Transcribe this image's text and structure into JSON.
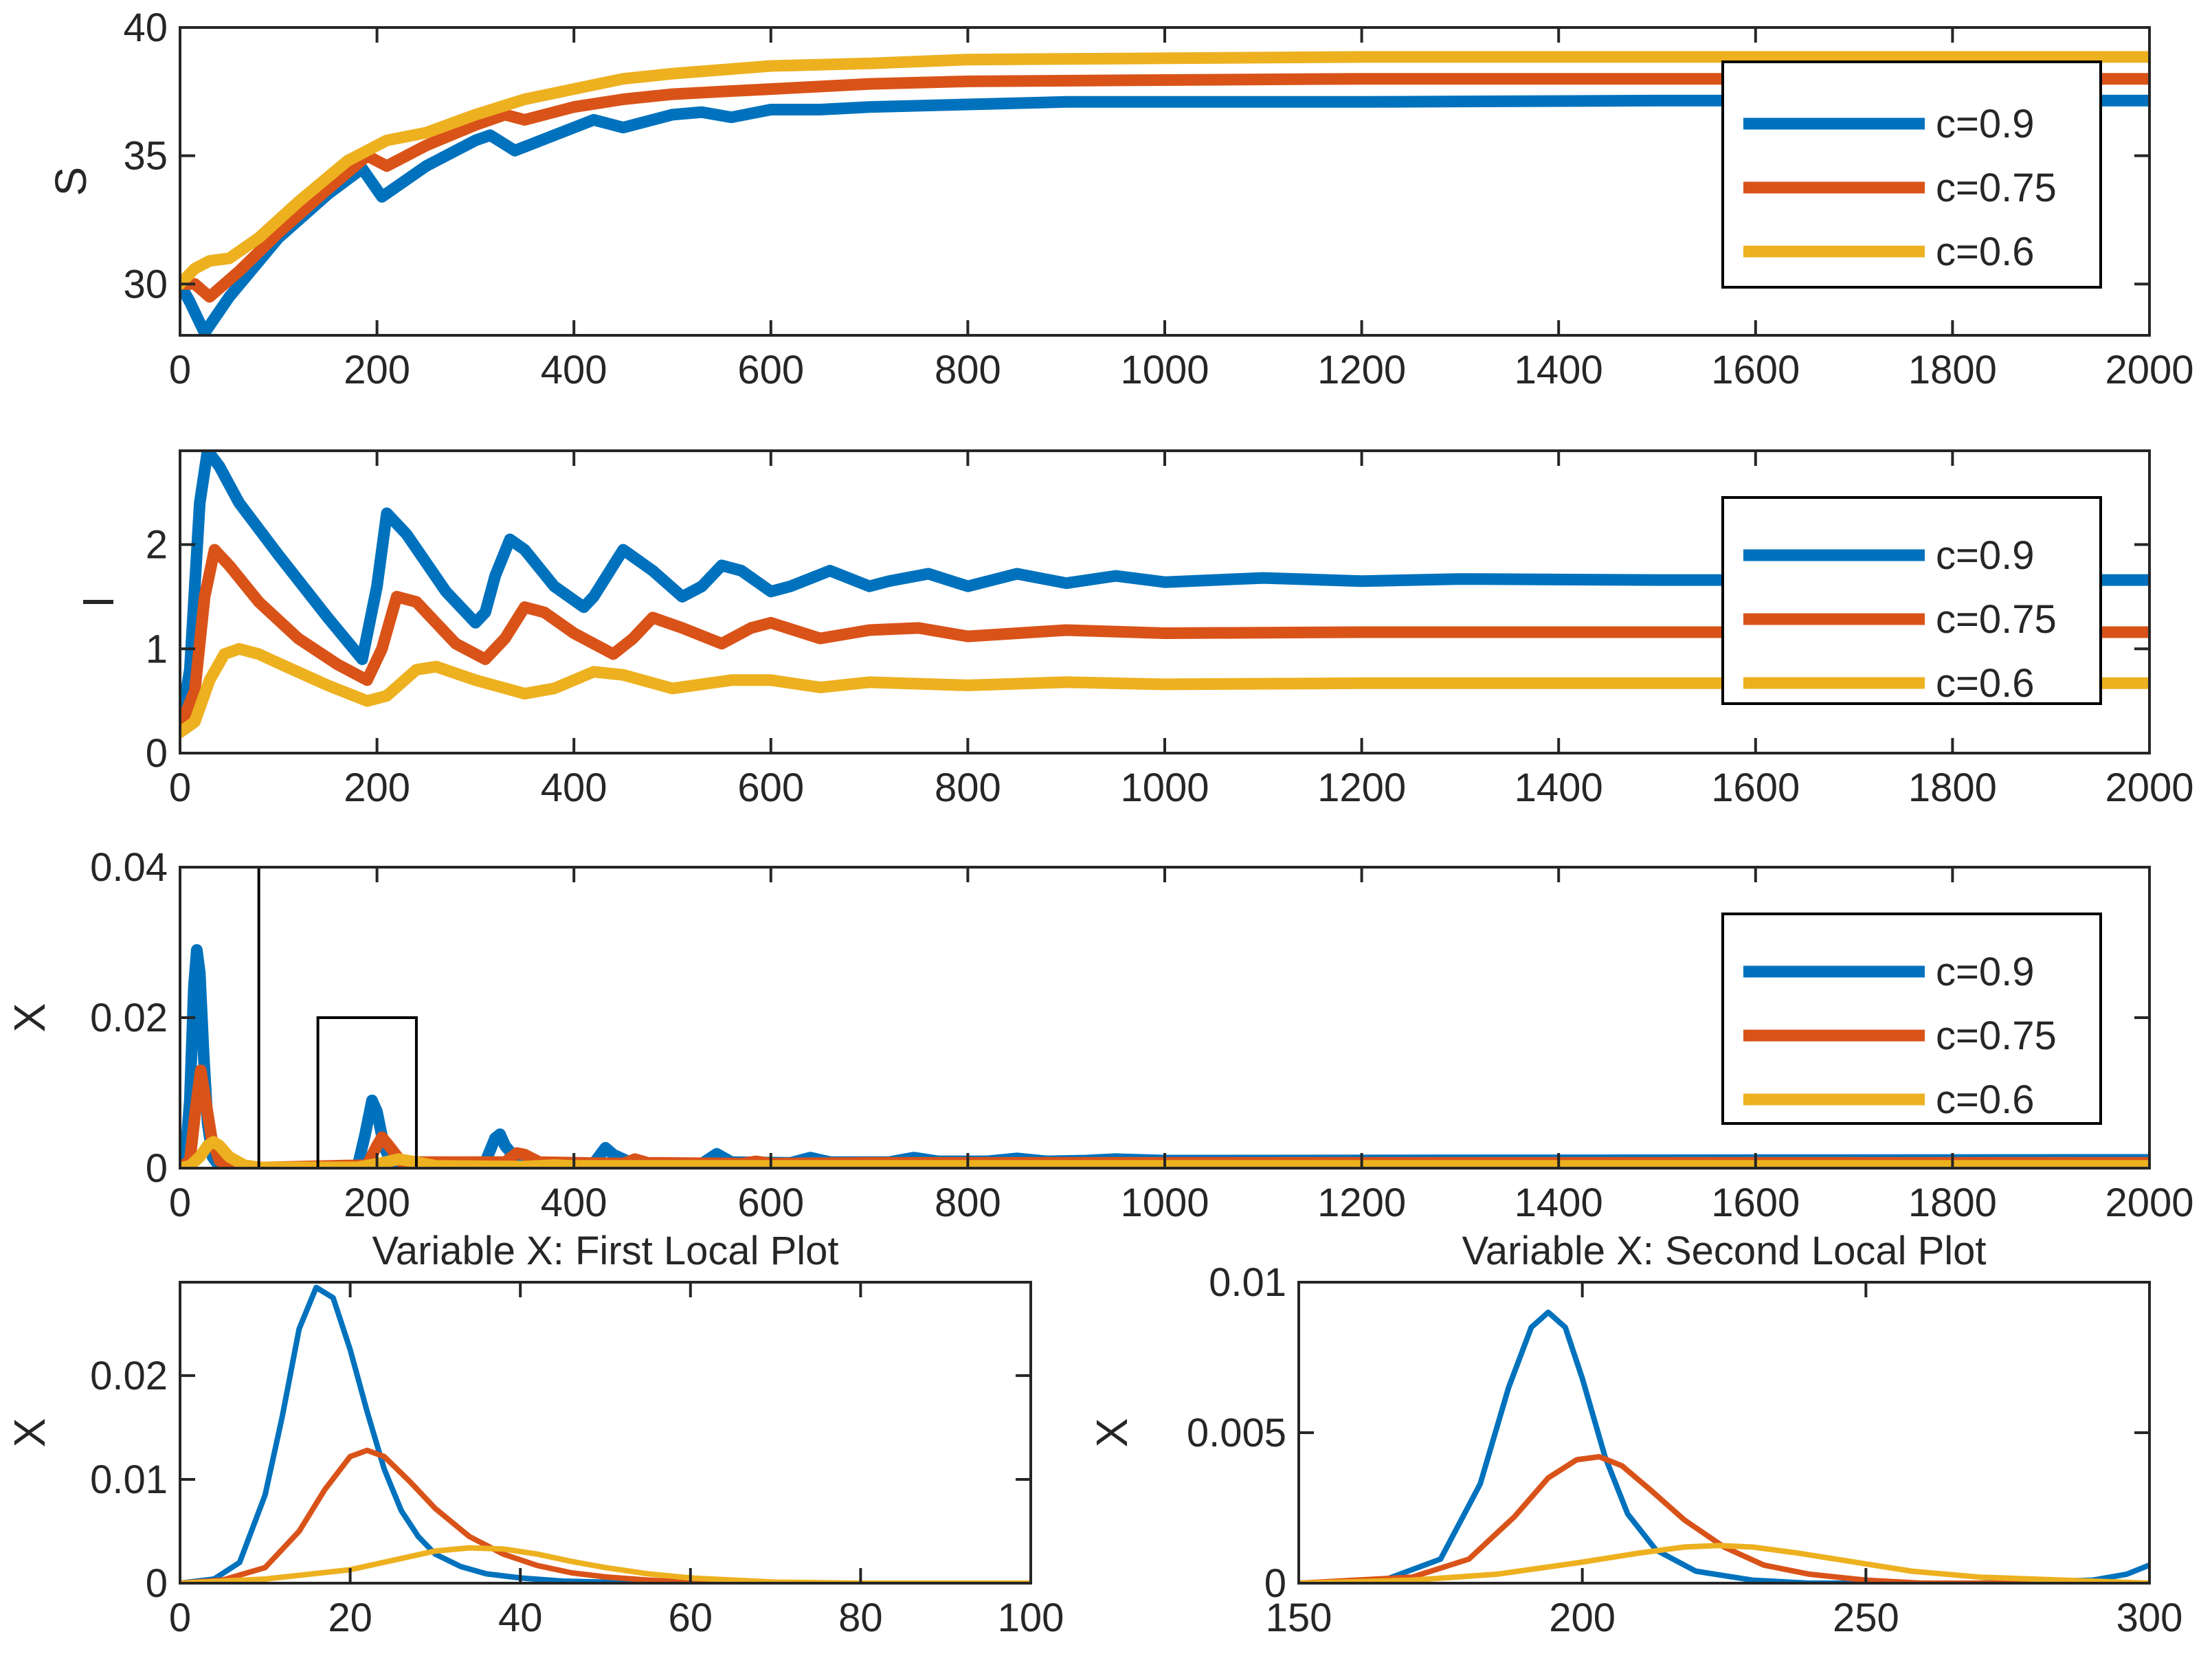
{
  "colors": {
    "c09": "#0072BD",
    "c075": "#D95319",
    "c06": "#EDB120",
    "axis": "#262626"
  },
  "legend": [
    "c=0.9",
    "c=0.75",
    "c=0.6"
  ],
  "chart_data": [
    {
      "id": "S",
      "type": "line",
      "title": "",
      "xlabel": "",
      "ylabel": "S",
      "xlim": [
        0,
        2000
      ],
      "ylim": [
        28,
        40
      ],
      "xticks": [
        0,
        200,
        400,
        600,
        800,
        1000,
        1200,
        1400,
        1600,
        1800,
        2000
      ],
      "yticks": [
        30,
        35,
        40
      ],
      "xtick_labels": [
        "0",
        "200",
        "400",
        "600",
        "800",
        "1000",
        "1200",
        "1400",
        "1600",
        "1800",
        "2000"
      ],
      "ytick_labels": [
        "30",
        "35",
        "40"
      ],
      "legend_placement": "top-right",
      "series": [
        {
          "name": "c=0.9",
          "x": [
            0,
            10,
            25,
            50,
            100,
            150,
            185,
            205,
            250,
            300,
            315,
            340,
            380,
            420,
            450,
            500,
            530,
            560,
            600,
            650,
            700,
            800,
            900,
            1000,
            1200,
            1500,
            2000
          ],
          "values": [
            30,
            29.3,
            28.1,
            29.5,
            31.8,
            33.5,
            34.5,
            33.4,
            34.6,
            35.6,
            35.8,
            35.2,
            35.8,
            36.4,
            36.1,
            36.6,
            36.7,
            36.5,
            36.8,
            36.8,
            36.9,
            37.0,
            37.1,
            37.1,
            37.1,
            37.15,
            37.15
          ]
        },
        {
          "name": "c=0.75",
          "x": [
            0,
            15,
            30,
            60,
            100,
            150,
            190,
            210,
            250,
            300,
            330,
            350,
            400,
            450,
            500,
            550,
            600,
            650,
            700,
            800,
            1000,
            1200,
            1500,
            2000
          ],
          "values": [
            30,
            30.0,
            29.5,
            30.5,
            32.0,
            33.7,
            35.0,
            34.6,
            35.4,
            36.2,
            36.6,
            36.4,
            36.9,
            37.2,
            37.4,
            37.5,
            37.6,
            37.7,
            37.8,
            37.9,
            37.95,
            38.0,
            38.0,
            38.0
          ]
        },
        {
          "name": "c=0.6",
          "x": [
            0,
            15,
            30,
            50,
            80,
            120,
            170,
            210,
            250,
            300,
            350,
            400,
            450,
            500,
            600,
            700,
            800,
            1000,
            1200,
            1500,
            2000
          ],
          "values": [
            30,
            30.6,
            30.9,
            31.0,
            31.8,
            33.2,
            34.8,
            35.6,
            35.9,
            36.6,
            37.2,
            37.6,
            38.0,
            38.2,
            38.5,
            38.6,
            38.75,
            38.8,
            38.85,
            38.85,
            38.85
          ]
        }
      ]
    },
    {
      "id": "I",
      "type": "line",
      "title": "",
      "xlabel": "",
      "ylabel": "I",
      "xlim": [
        0,
        2000
      ],
      "ylim": [
        0,
        2.9
      ],
      "xticks": [
        0,
        200,
        400,
        600,
        800,
        1000,
        1200,
        1400,
        1600,
        1800,
        2000
      ],
      "yticks": [
        0,
        1,
        2
      ],
      "xtick_labels": [
        "0",
        "200",
        "400",
        "600",
        "800",
        "1000",
        "1200",
        "1400",
        "1600",
        "1800",
        "2000"
      ],
      "ytick_labels": [
        "0",
        "1",
        "2"
      ],
      "legend_placement": "top-right",
      "series": [
        {
          "name": "c=0.9",
          "x": [
            0,
            10,
            20,
            28,
            40,
            60,
            100,
            150,
            185,
            200,
            210,
            230,
            270,
            300,
            310,
            320,
            335,
            350,
            380,
            410,
            420,
            440,
            450,
            480,
            510,
            530,
            550,
            570,
            600,
            620,
            660,
            700,
            720,
            760,
            800,
            850,
            900,
            950,
            1000,
            1100,
            1200,
            1300,
            1500,
            2000
          ],
          "values": [
            0.25,
            0.8,
            2.4,
            2.9,
            2.75,
            2.4,
            1.9,
            1.3,
            0.9,
            1.6,
            2.3,
            2.1,
            1.55,
            1.25,
            1.35,
            1.7,
            2.05,
            1.95,
            1.6,
            1.4,
            1.5,
            1.8,
            1.95,
            1.75,
            1.5,
            1.6,
            1.8,
            1.75,
            1.55,
            1.6,
            1.75,
            1.6,
            1.65,
            1.72,
            1.6,
            1.72,
            1.63,
            1.7,
            1.64,
            1.68,
            1.65,
            1.67,
            1.66,
            1.66
          ]
        },
        {
          "name": "c=0.75",
          "x": [
            0,
            15,
            25,
            35,
            50,
            80,
            120,
            160,
            190,
            205,
            220,
            240,
            280,
            310,
            330,
            350,
            370,
            400,
            440,
            460,
            480,
            510,
            550,
            580,
            600,
            650,
            700,
            750,
            800,
            900,
            1000,
            1200,
            1500,
            2000
          ],
          "values": [
            0.25,
            0.6,
            1.5,
            1.95,
            1.8,
            1.45,
            1.1,
            0.85,
            0.7,
            1.0,
            1.5,
            1.45,
            1.05,
            0.9,
            1.1,
            1.4,
            1.35,
            1.15,
            0.95,
            1.1,
            1.3,
            1.2,
            1.05,
            1.2,
            1.25,
            1.1,
            1.18,
            1.2,
            1.12,
            1.18,
            1.15,
            1.16,
            1.16,
            1.16
          ]
        },
        {
          "name": "c=0.6",
          "x": [
            0,
            15,
            30,
            45,
            60,
            80,
            110,
            150,
            190,
            210,
            240,
            260,
            300,
            350,
            380,
            420,
            450,
            500,
            560,
            600,
            650,
            700,
            800,
            900,
            1000,
            1200,
            1500,
            2000
          ],
          "values": [
            0.2,
            0.3,
            0.7,
            0.95,
            1.0,
            0.95,
            0.82,
            0.65,
            0.5,
            0.55,
            0.8,
            0.83,
            0.7,
            0.57,
            0.62,
            0.78,
            0.75,
            0.62,
            0.7,
            0.7,
            0.63,
            0.68,
            0.65,
            0.68,
            0.66,
            0.67,
            0.67,
            0.67
          ]
        }
      ]
    },
    {
      "id": "X",
      "type": "line",
      "title": "",
      "xlabel": "",
      "ylabel": "X",
      "xlim": [
        0,
        2000
      ],
      "ylim": [
        0,
        0.04
      ],
      "xticks": [
        0,
        200,
        400,
        600,
        800,
        1000,
        1200,
        1400,
        1600,
        1800,
        2000
      ],
      "yticks": [
        0,
        0.02,
        0.04
      ],
      "xtick_labels": [
        "0",
        "200",
        "400",
        "600",
        "800",
        "1000",
        "1200",
        "1400",
        "1600",
        "1800",
        "2000"
      ],
      "ytick_labels": [
        "0",
        "0.02",
        "0.04"
      ],
      "legend_placement": "right",
      "zoom_boxes": [
        {
          "x0": 0,
          "x1": 80,
          "y0": 0,
          "y1": 0.04
        },
        {
          "x0": 140,
          "x1": 240,
          "y0": 0,
          "y1": 0.02
        }
      ],
      "series": [
        {
          "name": "c=0.9",
          "x": [
            0,
            5,
            10,
            14,
            17,
            20,
            24,
            28,
            33,
            40,
            50,
            180,
            188,
            195,
            200,
            207,
            215,
            310,
            320,
            325,
            330,
            345,
            420,
            432,
            440,
            460,
            530,
            545,
            560,
            620,
            640,
            660,
            720,
            745,
            770,
            820,
            850,
            880,
            920,
            950,
            1000,
            2000
          ],
          "values": [
            0,
            0.001,
            0.009,
            0.024,
            0.029,
            0.026,
            0.015,
            0.006,
            0.0015,
            0.0002,
            0,
            0,
            0.0045,
            0.009,
            0.0075,
            0.003,
            0.0005,
            0.0008,
            0.004,
            0.0045,
            0.003,
            0.0006,
            0.0006,
            0.0027,
            0.0018,
            0.0006,
            0.0006,
            0.0019,
            0.0008,
            0.0007,
            0.0014,
            0.0008,
            0.0008,
            0.0014,
            0.0009,
            0.0009,
            0.0013,
            0.0009,
            0.001,
            0.0012,
            0.001,
            0.0011
          ]
        },
        {
          "name": "c=0.75",
          "x": [
            0,
            10,
            16,
            21,
            26,
            32,
            40,
            55,
            190,
            200,
            205,
            212,
            225,
            330,
            342,
            350,
            365,
            450,
            462,
            475,
            570,
            585,
            600,
            700,
            2000
          ],
          "values": [
            0,
            0.001,
            0.008,
            0.013,
            0.009,
            0.004,
            0.001,
            0,
            0.0004,
            0.003,
            0.0041,
            0.003,
            0.0008,
            0.0008,
            0.002,
            0.0018,
            0.0008,
            0.0006,
            0.0012,
            0.0007,
            0.0006,
            0.0009,
            0.0006,
            0.0007,
            0.0007
          ]
        },
        {
          "name": "c=0.6",
          "x": [
            0,
            10,
            20,
            28,
            34,
            40,
            50,
            65,
            80,
            180,
            205,
            222,
            240,
            260,
            350,
            380,
            400,
            2000
          ],
          "values": [
            0,
            0.0003,
            0.0015,
            0.003,
            0.0035,
            0.003,
            0.0015,
            0.0004,
            0.0001,
            0.0001,
            0.0007,
            0.0012,
            0.0008,
            0.0003,
            0.0002,
            0.0004,
            0.0003,
            0.0003
          ]
        }
      ]
    },
    {
      "id": "X-local-1",
      "type": "line",
      "title": "Variable X: First Local Plot",
      "xlabel": "",
      "ylabel": "X",
      "xlim": [
        0,
        100
      ],
      "ylim": [
        0,
        0.029
      ],
      "xticks": [
        0,
        20,
        40,
        60,
        80,
        100
      ],
      "yticks": [
        0,
        0.01,
        0.02
      ],
      "xtick_labels": [
        "0",
        "20",
        "40",
        "60",
        "80",
        "100"
      ],
      "ytick_labels": [
        "0",
        "0.01",
        "0.02"
      ],
      "series": [
        {
          "name": "c=0.9",
          "x": [
            0,
            4,
            7,
            10,
            12,
            14,
            16,
            18,
            20,
            22,
            24,
            26,
            28,
            30,
            33,
            36,
            40,
            45,
            50,
            60,
            100
          ],
          "values": [
            0,
            0.0004,
            0.002,
            0.0085,
            0.016,
            0.0245,
            0.0285,
            0.0275,
            0.0225,
            0.0165,
            0.011,
            0.007,
            0.0045,
            0.0028,
            0.0016,
            0.0009,
            0.0005,
            0.0002,
            0.0001,
            0,
            0
          ]
        },
        {
          "name": "c=0.75",
          "x": [
            0,
            5,
            10,
            14,
            17,
            20,
            22,
            24,
            27,
            30,
            34,
            38,
            42,
            46,
            50,
            55,
            60,
            70,
            100
          ],
          "values": [
            0,
            0.0003,
            0.0015,
            0.005,
            0.009,
            0.0122,
            0.0128,
            0.0122,
            0.0098,
            0.0072,
            0.0045,
            0.0028,
            0.0017,
            0.001,
            0.0006,
            0.0003,
            0.0001,
            0,
            0
          ]
        },
        {
          "name": "c=0.6",
          "x": [
            0,
            10,
            20,
            25,
            30,
            34,
            38,
            42,
            46,
            50,
            55,
            60,
            65,
            70,
            80,
            100
          ],
          "values": [
            0,
            0.0004,
            0.0013,
            0.0022,
            0.0031,
            0.0034,
            0.0033,
            0.0028,
            0.0021,
            0.0015,
            0.0009,
            0.0005,
            0.0003,
            0.0001,
            0,
            0
          ]
        }
      ]
    },
    {
      "id": "X-local-2",
      "type": "line",
      "title": "Variable X: Second Local Plot",
      "xlabel": "",
      "ylabel": "X",
      "xlim": [
        150,
        300
      ],
      "ylim": [
        0,
        0.01
      ],
      "xticks": [
        150,
        200,
        250,
        300
      ],
      "yticks": [
        0,
        0.005,
        0.01
      ],
      "xtick_labels": [
        "150",
        "200",
        "250",
        "300"
      ],
      "ytick_labels": [
        "0",
        "0.005",
        "0.01"
      ],
      "series": [
        {
          "name": "c=0.9",
          "x": [
            150,
            165,
            175,
            182,
            187,
            191,
            194,
            197,
            200,
            204,
            208,
            213,
            220,
            230,
            240,
            250,
            270,
            290,
            296,
            300
          ],
          "values": [
            0,
            0.0001,
            0.0008,
            0.0033,
            0.0065,
            0.0085,
            0.009,
            0.0085,
            0.0068,
            0.0042,
            0.0023,
            0.0011,
            0.0004,
            0.0001,
            0,
            0,
            0,
            0.0001,
            0.0003,
            0.0006
          ]
        },
        {
          "name": "c=0.75",
          "x": [
            150,
            170,
            180,
            188,
            194,
            199,
            203,
            207,
            212,
            218,
            225,
            232,
            240,
            250,
            260,
            275,
            300
          ],
          "values": [
            0,
            0.0002,
            0.0008,
            0.0022,
            0.0035,
            0.0041,
            0.0042,
            0.0039,
            0.0031,
            0.0021,
            0.0012,
            0.0006,
            0.0003,
            0.0001,
            0,
            0,
            0
          ]
        },
        {
          "name": "c=0.6",
          "x": [
            150,
            170,
            185,
            200,
            210,
            218,
            224,
            230,
            238,
            248,
            258,
            270,
            285,
            300
          ],
          "values": [
            0,
            0.0001,
            0.0003,
            0.0007,
            0.001,
            0.0012,
            0.00125,
            0.0012,
            0.001,
            0.0007,
            0.0004,
            0.0002,
            0.0001,
            0
          ]
        }
      ]
    }
  ]
}
